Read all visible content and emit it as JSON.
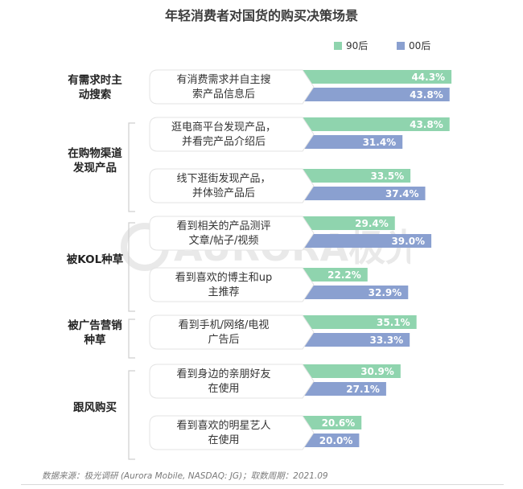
{
  "chart_data": {
    "type": "bar",
    "orientation": "horizontal",
    "title": "年轻消费者对国货的购买决策场景",
    "series": [
      {
        "name": "90后",
        "color": "#8fd4ae"
      },
      {
        "name": "00后",
        "color": "#8aa0d0"
      }
    ],
    "groups": [
      {
        "name": "有需求时主动搜索",
        "lines": [
          "有需求时主",
          "动搜索"
        ],
        "items": [
          {
            "lines": [
              "有消费需求并自主搜",
              "索产品信息后"
            ],
            "values": [
              44.3,
              43.8
            ],
            "labels": [
              "44.3%",
              "43.8%"
            ]
          }
        ]
      },
      {
        "name": "在购物渠道发现产品",
        "lines": [
          "在购物渠道",
          "发现产品"
        ],
        "items": [
          {
            "lines": [
              "逛电商平台发现产品，",
              "并看完产品介绍后"
            ],
            "values": [
              43.8,
              31.4
            ],
            "labels": [
              "43.8%",
              "31.4%"
            ]
          },
          {
            "lines": [
              "线下逛街发现产品，",
              "并体验产品后"
            ],
            "values": [
              33.5,
              37.4
            ],
            "labels": [
              "33.5%",
              "37.4%"
            ]
          }
        ]
      },
      {
        "name": "被KOL种草",
        "lines": [
          "被KOL种草"
        ],
        "items": [
          {
            "lines": [
              "看到相关的产品测评",
              "文章/帖子/视频"
            ],
            "values": [
              29.4,
              39.0
            ],
            "labels": [
              "29.4%",
              "39.0%"
            ]
          },
          {
            "lines": [
              "看到喜欢的博主和up",
              "主推荐"
            ],
            "values": [
              22.2,
              32.9
            ],
            "labels": [
              "22.2%",
              "32.9%"
            ]
          }
        ]
      },
      {
        "name": "被广告营销种草",
        "lines": [
          "被广告营销",
          "种草"
        ],
        "items": [
          {
            "lines": [
              "看到手机/网络/电视",
              "广告后"
            ],
            "values": [
              35.1,
              33.3
            ],
            "labels": [
              "35.1%",
              "33.3%"
            ]
          }
        ]
      },
      {
        "name": "跟风购买",
        "lines": [
          "跟风购买"
        ],
        "items": [
          {
            "lines": [
              "看到身边的亲朋好友",
              "在使用"
            ],
            "values": [
              30.9,
              27.1
            ],
            "labels": [
              "30.9%",
              "27.1%"
            ]
          },
          {
            "lines": [
              "看到喜欢的明星艺人",
              "在使用"
            ],
            "values": [
              20.6,
              20.0
            ],
            "labels": [
              "20.6%",
              "20.0%"
            ]
          }
        ]
      }
    ]
  },
  "watermark": "AURORA极光",
  "source": "数据来源：极光调研 (Aurora Mobile, NASDAQ: JG)；取数周期：2021.09"
}
